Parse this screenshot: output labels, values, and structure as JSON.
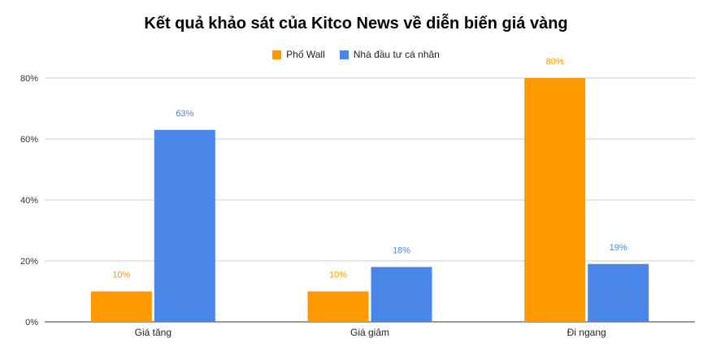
{
  "chart_data": {
    "type": "bar",
    "title": "Kết quả khảo sát của Kitco News về diễn biến giá vàng",
    "categories": [
      "Giá tăng",
      "Giá giảm",
      "Đi ngang"
    ],
    "series": [
      {
        "name": "Phố Wall",
        "color": "#ff9900",
        "values": [
          10,
          10,
          80
        ],
        "labels": [
          "10%",
          "10%",
          "80%"
        ]
      },
      {
        "name": "Nhà đầu tư cá nhân",
        "color": "#4a86e8",
        "values": [
          63,
          18,
          19
        ],
        "labels": [
          "63%",
          "18%",
          "19%"
        ]
      }
    ],
    "yticks": [
      "0%",
      "20%",
      "40%",
      "60%",
      "80%"
    ],
    "ytick_values": [
      0,
      20,
      40,
      60,
      80
    ],
    "ylim": [
      0,
      80
    ],
    "grid": true,
    "legend_position": "top"
  }
}
